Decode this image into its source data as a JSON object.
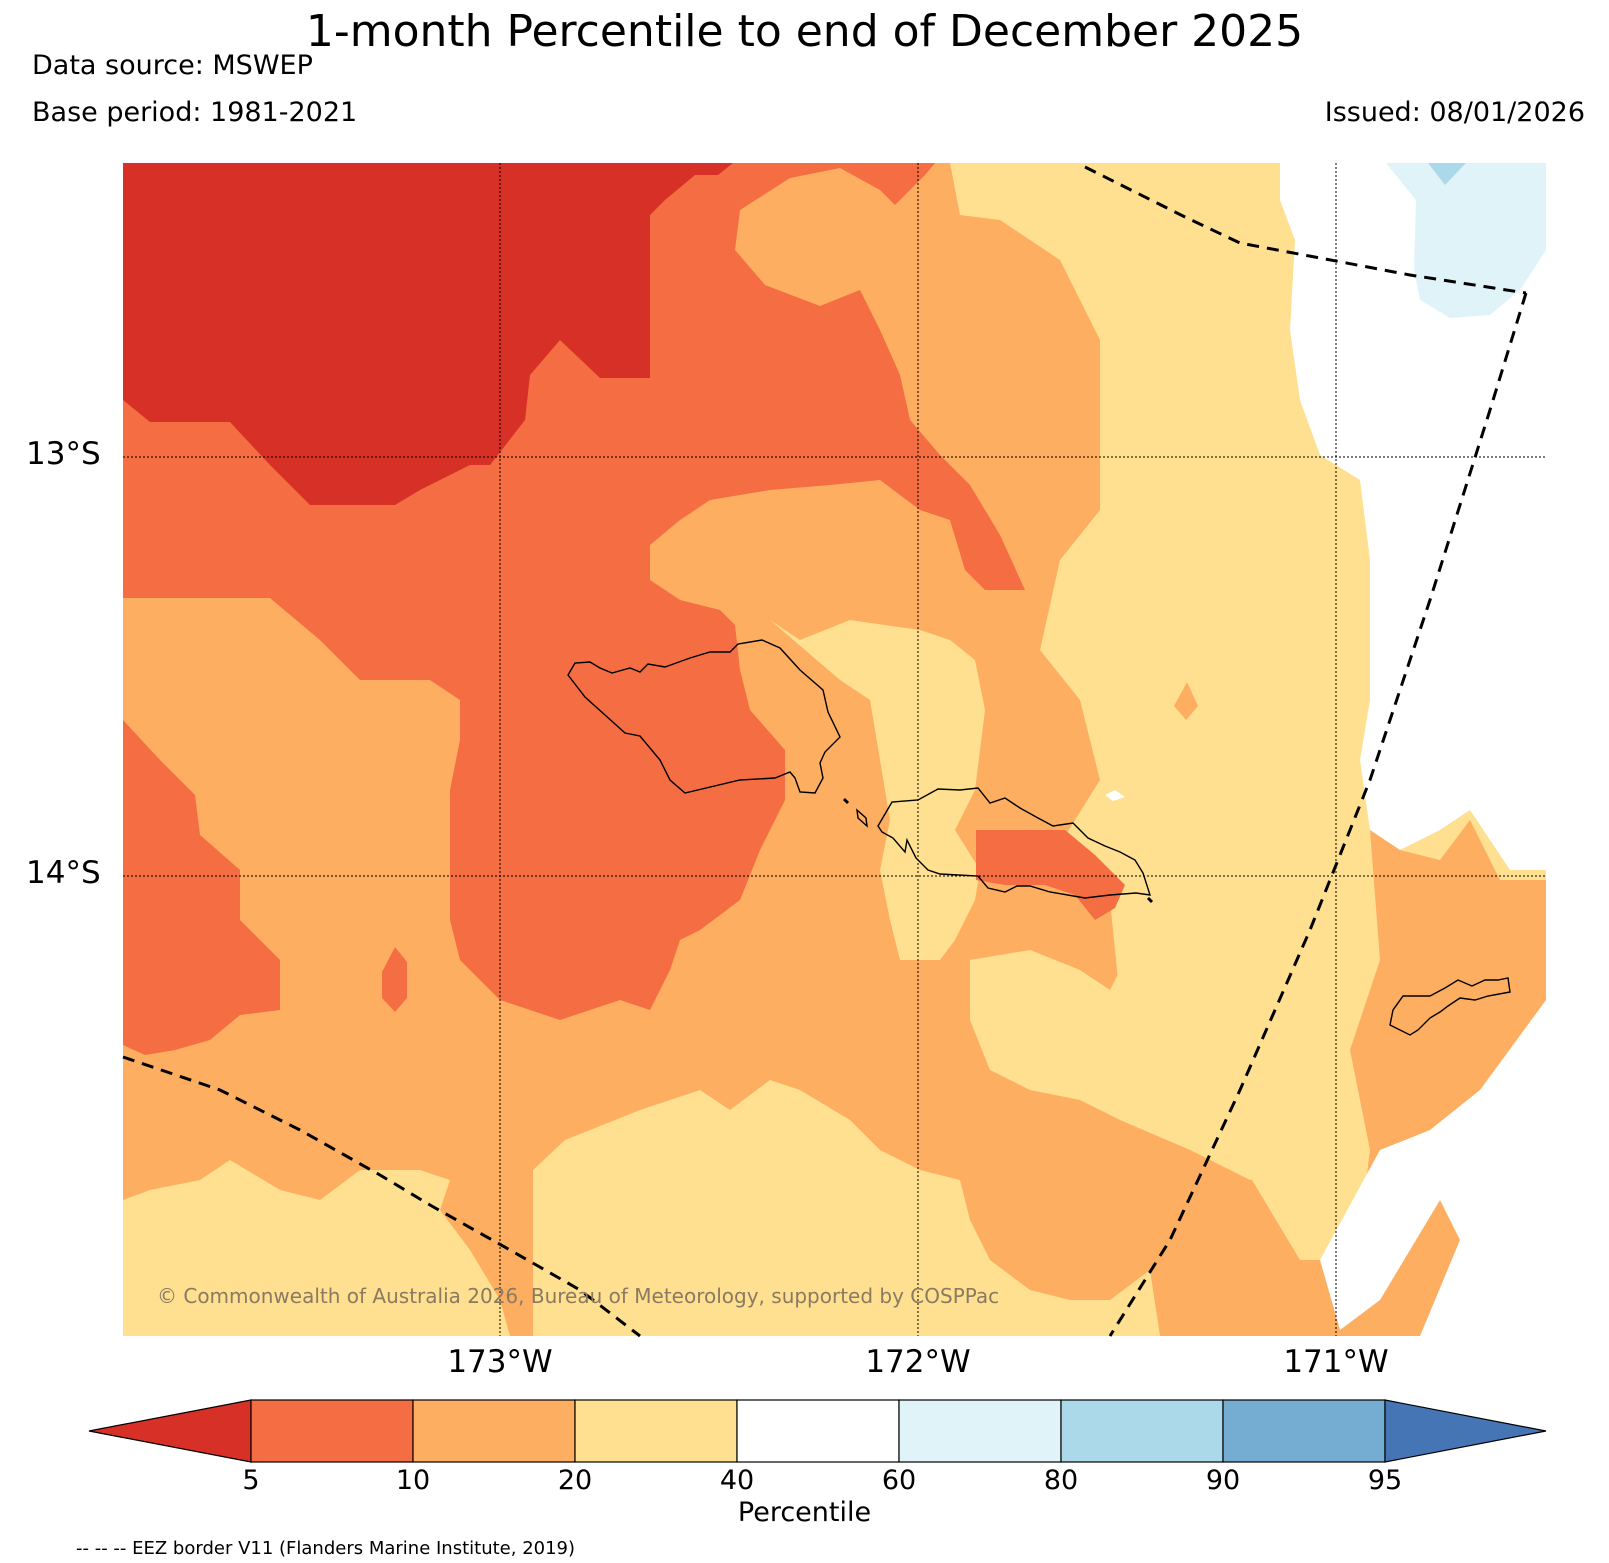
{
  "header": {
    "title": "1-month Percentile to end of December 2025",
    "data_source": "Data source: MSWEP",
    "base_period": "Base period: 1981-2021",
    "issued": "Issued: 08/01/2026"
  },
  "map": {
    "lat_labels": [
      "13°S",
      "14°S"
    ],
    "lon_labels": [
      "173°W",
      "172°W",
      "171°W"
    ],
    "copyright": "© Commonwealth of Australia 2026, Bureau of Meteorology, supported by COSPPac",
    "eez_note": "-- -- -- EEZ border V11 (Flanders Marine Institute, 2019)"
  },
  "colorbar": {
    "label": "Percentile",
    "ticks": [
      "5",
      "10",
      "20",
      "40",
      "60",
      "80",
      "90",
      "95"
    ],
    "bins": [
      {
        "range": "<5",
        "color": "#d73027"
      },
      {
        "range": "5-10",
        "color": "#f46d43"
      },
      {
        "range": "10-20",
        "color": "#fdae61"
      },
      {
        "range": "20-40",
        "color": "#fee090"
      },
      {
        "range": "40-60",
        "color": "#ffffff"
      },
      {
        "range": "60-80",
        "color": "#e0f3f8"
      },
      {
        "range": "80-90",
        "color": "#abd9e9"
      },
      {
        "range": "90-95",
        "color": "#74add1"
      },
      {
        "range": ">95",
        "color": "#4575b4"
      }
    ]
  }
}
